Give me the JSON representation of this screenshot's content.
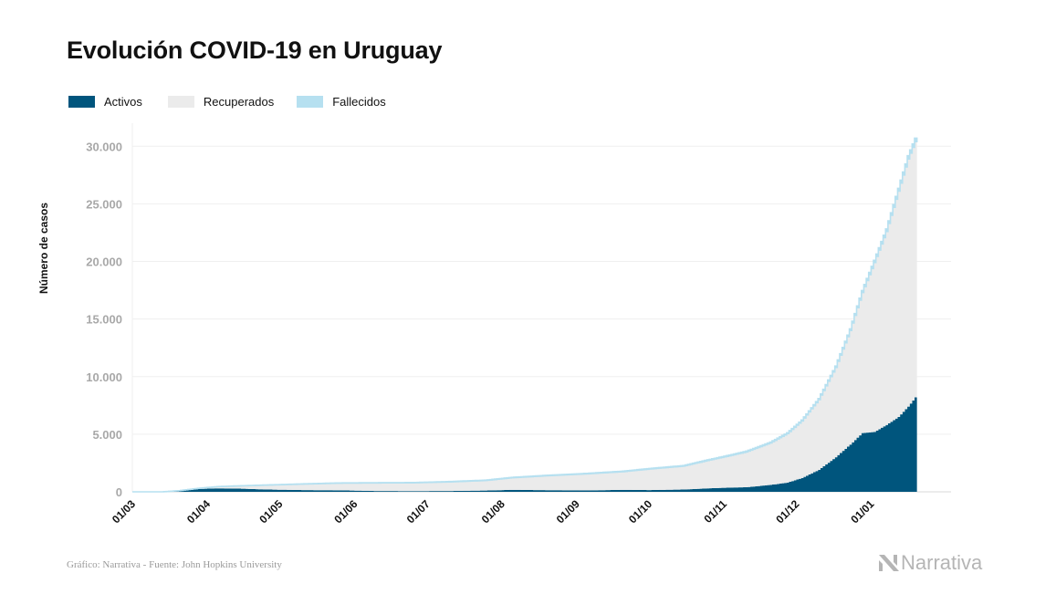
{
  "header": {
    "title": "Evolución COVID-19 en Uruguay"
  },
  "legend": {
    "items": [
      {
        "label": "Activos",
        "color": "#00557d"
      },
      {
        "label": "Recuperados",
        "color": "#ebebeb"
      },
      {
        "label": "Fallecidos",
        "color": "#b6e0f0"
      }
    ]
  },
  "footer": {
    "source": "Gráfico: Narrativa - Fuente: John Hopkins University",
    "brand": "Narrativa"
  },
  "chart_data": {
    "type": "area",
    "stacked": true,
    "title": "Evolución COVID-19 en Uruguay",
    "xlabel": "",
    "ylabel": "Número de casos",
    "ylim": [
      0,
      32000
    ],
    "yticks": [
      0,
      5000,
      10000,
      15000,
      20000,
      25000,
      30000
    ],
    "ytick_labels": [
      "0",
      "5.000",
      "10.000",
      "15.000",
      "20.000",
      "25.000",
      "30.000"
    ],
    "xticks": [
      "2020-03-01",
      "2020-04-01",
      "2020-05-01",
      "2020-06-01",
      "2020-07-01",
      "2020-08-01",
      "2020-09-01",
      "2020-10-01",
      "2020-11-01",
      "2020-12-01",
      "2021-01-01"
    ],
    "xtick_labels": [
      "01/03",
      "01/04",
      "01/05",
      "01/06",
      "01/07",
      "01/08",
      "01/09",
      "01/10",
      "01/11",
      "01/12",
      "01/01"
    ],
    "x_range": [
      "2020-03-01",
      "2021-01-19"
    ],
    "grid": true,
    "legend_position": "top-left",
    "series": [
      {
        "name": "Activos",
        "color": "#00557d",
        "points": [
          [
            "2020-03-13",
            0
          ],
          [
            "2020-03-20",
            100
          ],
          [
            "2020-03-28",
            250
          ],
          [
            "2020-04-05",
            300
          ],
          [
            "2020-04-15",
            270
          ],
          [
            "2020-04-25",
            200
          ],
          [
            "2020-05-10",
            150
          ],
          [
            "2020-05-25",
            130
          ],
          [
            "2020-06-10",
            70
          ],
          [
            "2020-06-25",
            60
          ],
          [
            "2020-07-10",
            70
          ],
          [
            "2020-07-25",
            110
          ],
          [
            "2020-08-05",
            170
          ],
          [
            "2020-08-20",
            140
          ],
          [
            "2020-09-05",
            120
          ],
          [
            "2020-09-20",
            170
          ],
          [
            "2020-10-01",
            150
          ],
          [
            "2020-10-15",
            200
          ],
          [
            "2020-10-25",
            300
          ],
          [
            "2020-11-01",
            350
          ],
          [
            "2020-11-10",
            400
          ],
          [
            "2020-11-20",
            600
          ],
          [
            "2020-11-27",
            800
          ],
          [
            "2020-12-03",
            1200
          ],
          [
            "2020-12-10",
            1900
          ],
          [
            "2020-12-17",
            3000
          ],
          [
            "2020-12-23",
            4100
          ],
          [
            "2020-12-28",
            5100
          ],
          [
            "2021-01-02",
            5200
          ],
          [
            "2021-01-07",
            5800
          ],
          [
            "2021-01-12",
            6500
          ],
          [
            "2021-01-16",
            7400
          ],
          [
            "2021-01-19",
            8200
          ]
        ]
      },
      {
        "name": "Recuperados",
        "color": "#ebebeb",
        "points": [
          [
            "2020-03-13",
            0
          ],
          [
            "2020-03-20",
            0
          ],
          [
            "2020-03-28",
            50
          ],
          [
            "2020-04-05",
            150
          ],
          [
            "2020-04-15",
            250
          ],
          [
            "2020-04-25",
            380
          ],
          [
            "2020-05-10",
            520
          ],
          [
            "2020-05-25",
            620
          ],
          [
            "2020-06-10",
            700
          ],
          [
            "2020-06-25",
            720
          ],
          [
            "2020-07-10",
            790
          ],
          [
            "2020-07-25",
            870
          ],
          [
            "2020-08-05",
            1050
          ],
          [
            "2020-08-20",
            1260
          ],
          [
            "2020-09-05",
            1440
          ],
          [
            "2020-09-20",
            1580
          ],
          [
            "2020-10-01",
            1830
          ],
          [
            "2020-10-15",
            2030
          ],
          [
            "2020-10-25",
            2420
          ],
          [
            "2020-11-01",
            2680
          ],
          [
            "2020-11-10",
            3060
          ],
          [
            "2020-11-20",
            3640
          ],
          [
            "2020-11-27",
            4250
          ],
          [
            "2020-12-03",
            4950
          ],
          [
            "2020-12-10",
            6100
          ],
          [
            "2020-12-17",
            7800
          ],
          [
            "2020-12-23",
            9900
          ],
          [
            "2020-12-28",
            12200
          ],
          [
            "2021-01-02",
            14700
          ],
          [
            "2021-01-07",
            16800
          ],
          [
            "2021-01-12",
            19600
          ],
          [
            "2021-01-16",
            21500
          ],
          [
            "2021-01-19",
            22200
          ]
        ]
      },
      {
        "name": "Fallecidos",
        "color": "#b6e0f0",
        "points": [
          [
            "2020-03-13",
            0
          ],
          [
            "2020-03-20",
            0
          ],
          [
            "2020-03-28",
            1
          ],
          [
            "2020-04-05",
            4
          ],
          [
            "2020-04-15",
            8
          ],
          [
            "2020-04-25",
            12
          ],
          [
            "2020-05-10",
            19
          ],
          [
            "2020-05-25",
            22
          ],
          [
            "2020-06-10",
            23
          ],
          [
            "2020-06-25",
            26
          ],
          [
            "2020-07-10",
            33
          ],
          [
            "2020-07-25",
            34
          ],
          [
            "2020-08-05",
            37
          ],
          [
            "2020-08-20",
            43
          ],
          [
            "2020-09-05",
            45
          ],
          [
            "2020-09-20",
            46
          ],
          [
            "2020-10-01",
            48
          ],
          [
            "2020-10-15",
            51
          ],
          [
            "2020-10-25",
            57
          ],
          [
            "2020-11-01",
            62
          ],
          [
            "2020-11-10",
            67
          ],
          [
            "2020-11-20",
            72
          ],
          [
            "2020-11-27",
            76
          ],
          [
            "2020-12-03",
            80
          ],
          [
            "2020-12-10",
            94
          ],
          [
            "2020-12-17",
            115
          ],
          [
            "2020-12-23",
            140
          ],
          [
            "2020-12-28",
            170
          ],
          [
            "2021-01-02",
            190
          ],
          [
            "2021-01-07",
            215
          ],
          [
            "2021-01-12",
            245
          ],
          [
            "2021-01-16",
            270
          ],
          [
            "2021-01-19",
            300
          ]
        ]
      }
    ]
  }
}
